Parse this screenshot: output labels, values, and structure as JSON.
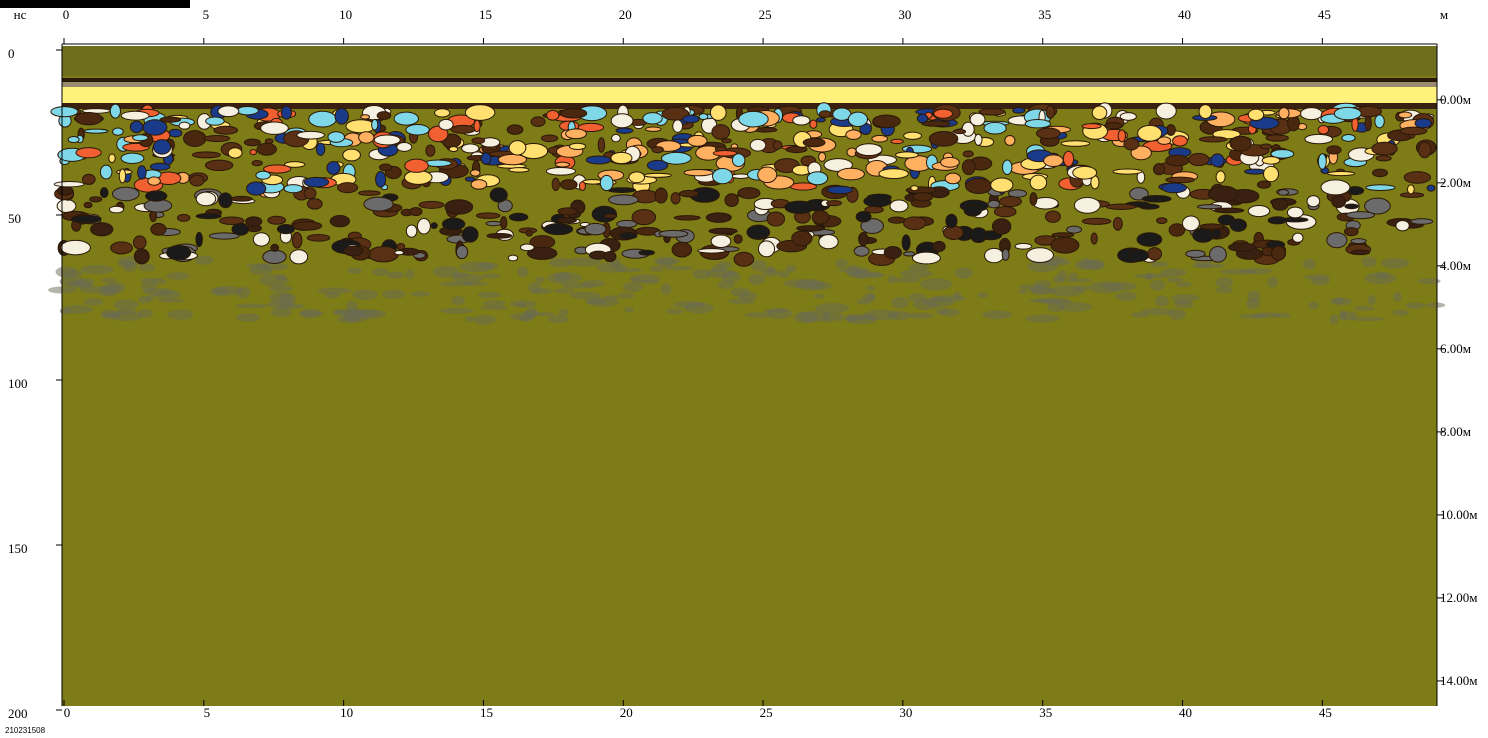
{
  "chart_data": {
    "type": "radargram",
    "x_unit": "м",
    "y_unit": "нс",
    "profile_id": "210231508",
    "xlim": [
      0,
      49.1
    ],
    "xticks": [
      0,
      5,
      10,
      15,
      20,
      25,
      30,
      35,
      40,
      45
    ],
    "ylim": [
      0,
      200
    ],
    "yticks": [
      0,
      50,
      100,
      150,
      200
    ],
    "y2lim": [
      -1.2,
      14.7
    ],
    "y2ticks": [
      {
        "value": 0,
        "label": "0.00м"
      },
      {
        "value": 2,
        "label": "2.00м"
      },
      {
        "value": 4,
        "label": "4.00м"
      },
      {
        "value": 6,
        "label": "6.00м"
      },
      {
        "value": 8,
        "label": "8.00м"
      },
      {
        "value": 10,
        "label": "10.00м"
      },
      {
        "value": 12,
        "label": "12.00м"
      },
      {
        "value": 14,
        "label": "14.00м"
      }
    ]
  }
}
